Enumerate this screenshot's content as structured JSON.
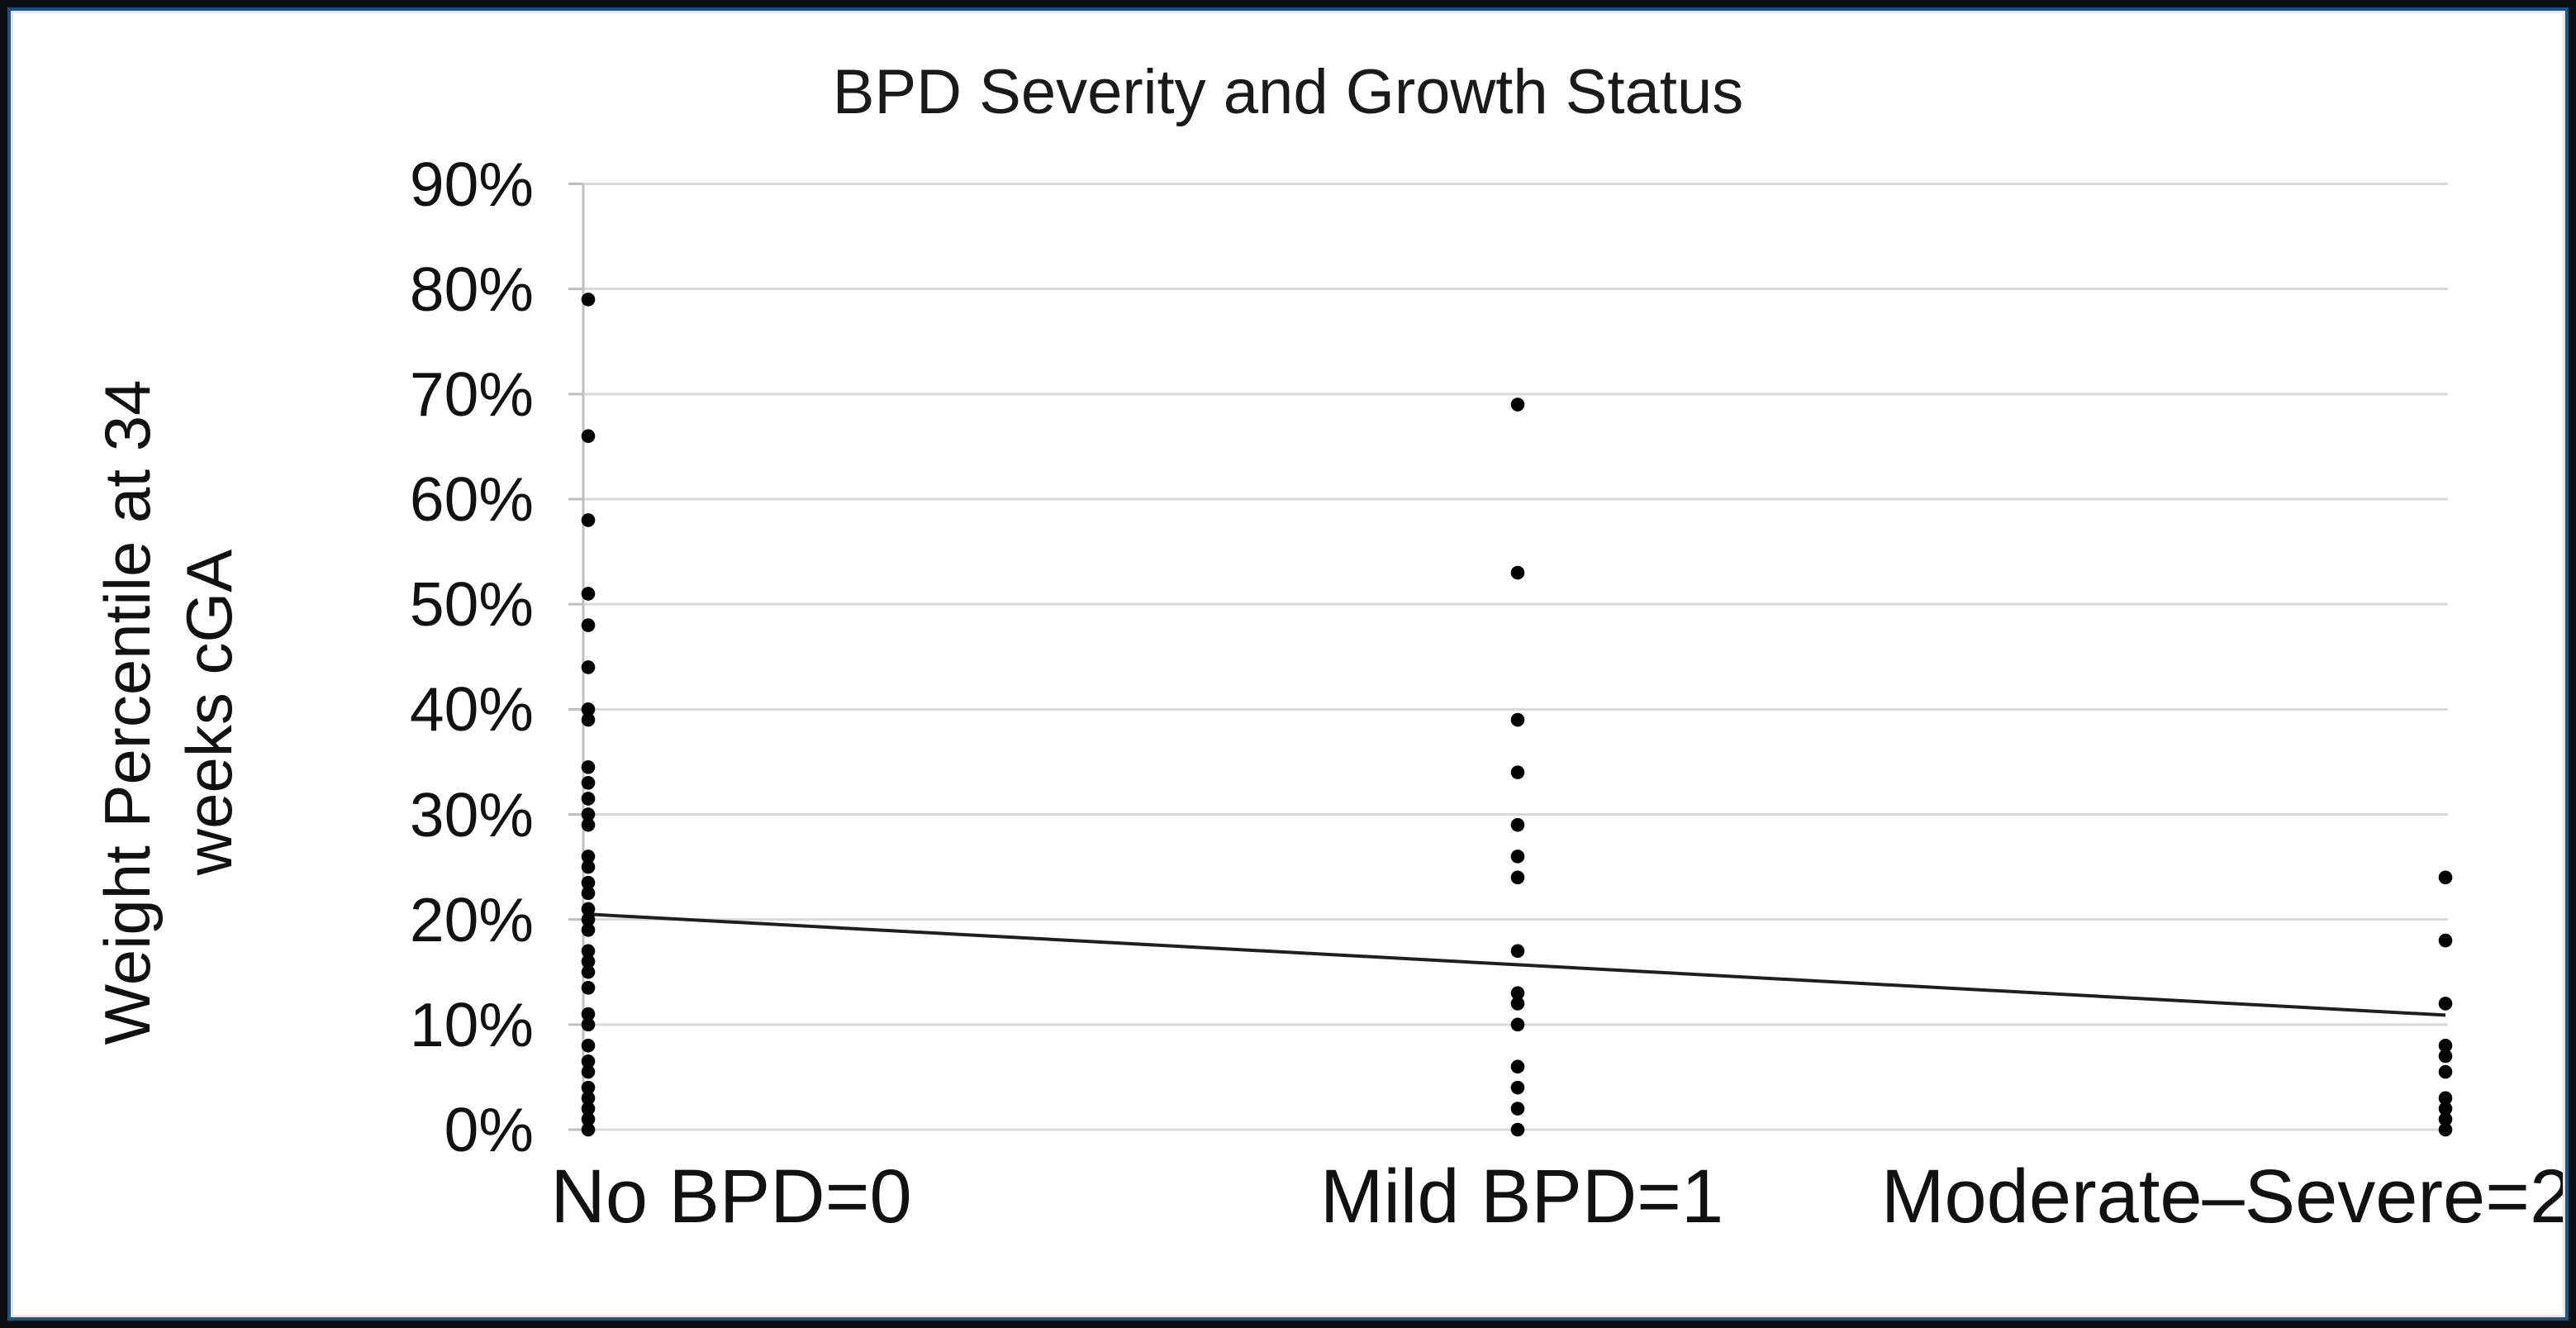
{
  "chart_data": {
    "type": "scatter",
    "title": "BPD Severity and Growth Status",
    "ylabel": "Weight Percentile at 34 weeks cGA",
    "ylabel_lines": [
      "Weight Percentile at 34",
      "weeks cGA"
    ],
    "xlabel": "",
    "categories": [
      "No BPD=0",
      "Mild BPD=1",
      "Moderate–Severe=2"
    ],
    "x_values": [
      0,
      1,
      2
    ],
    "ylim": [
      0,
      90
    ],
    "ytick_step": 10,
    "ytick_labels": [
      "0%",
      "10%",
      "20%",
      "30%",
      "40%",
      "50%",
      "60%",
      "70%",
      "80%",
      "90%"
    ],
    "grid": true,
    "legend": "none",
    "series": [
      {
        "name": "No BPD=0",
        "x": 0,
        "values": [
          79,
          66,
          58,
          51,
          48,
          44,
          40,
          39,
          34.5,
          33,
          31.5,
          30,
          29,
          26,
          25,
          23.5,
          22.5,
          21,
          20,
          19,
          17,
          16,
          15,
          13.5,
          11,
          10,
          8,
          6.5,
          5.5,
          4,
          3,
          2,
          1,
          0
        ]
      },
      {
        "name": "Mild BPD=1",
        "x": 1,
        "values": [
          69,
          53,
          39,
          34,
          29,
          26,
          24,
          17,
          13,
          12,
          10,
          6,
          4,
          2,
          0
        ]
      },
      {
        "name": "Moderate–Severe=2",
        "x": 2,
        "values": [
          24,
          18,
          12,
          8,
          7,
          5.5,
          3,
          2,
          1,
          0
        ]
      }
    ],
    "trendline": {
      "x_start": 0,
      "start_pct": 20.5,
      "x_end": 2,
      "end_pct": 10.9
    },
    "colors": {
      "dot": "#000000",
      "trendline": "#1f1f1f",
      "gridline": "#d9d9d9",
      "axis": "#c0c0c0",
      "text": "#111111",
      "frame_outer": "#0a0f14",
      "frame_inner": "#24527a"
    }
  }
}
